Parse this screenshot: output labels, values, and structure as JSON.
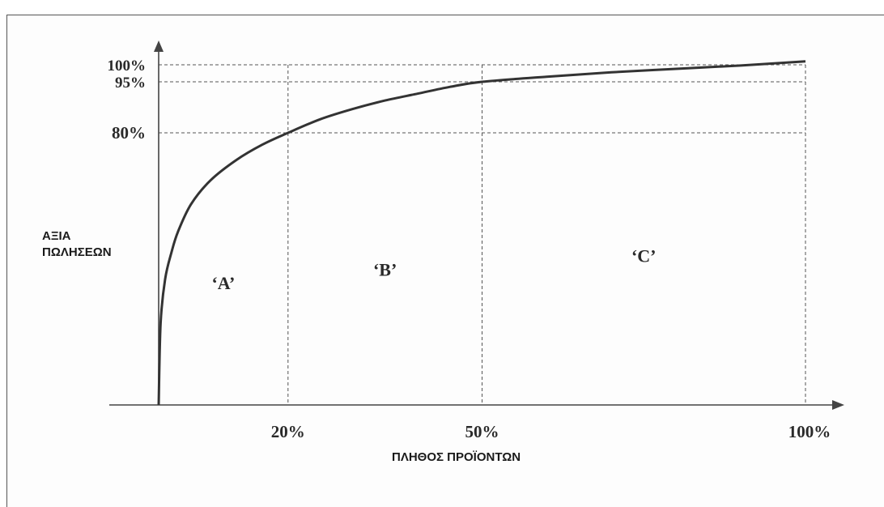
{
  "chart_data": {
    "type": "line",
    "xlabel": "ΠΛΗΘΟΣ ΠΡΟΪΟΝΤΩΝ",
    "ylabel": [
      "ΑΞΙΑ",
      "ΠΩΛΗΣΕΩΝ"
    ],
    "x_ticks": [
      {
        "value": 20,
        "label": "20%"
      },
      {
        "value": 50,
        "label": "50%"
      },
      {
        "value": 100,
        "label": "100%"
      }
    ],
    "y_ticks": [
      {
        "value": 80,
        "label": "80%"
      },
      {
        "value": 95,
        "label": "95%"
      },
      {
        "value": 100,
        "label": "100%"
      }
    ],
    "xlim": [
      0,
      100
    ],
    "ylim": [
      0,
      100
    ],
    "grid": "dashed lines at ticks",
    "series": [
      {
        "x": [
          0,
          0.3,
          1,
          2,
          3,
          5,
          8,
          12,
          16,
          20,
          25,
          30,
          35,
          40,
          45,
          50,
          60,
          70,
          80,
          90,
          100
        ],
        "y": [
          0,
          24,
          37,
          45,
          51,
          59,
          66,
          72,
          76.5,
          80,
          84,
          87,
          89.5,
          91.5,
          93.5,
          95,
          96.5,
          97.8,
          98.8,
          99.8,
          101
        ]
      }
    ],
    "region_labels": [
      {
        "label": "‘A’",
        "x": 10,
        "y": 34
      },
      {
        "label": "‘B’",
        "x": 35,
        "y": 38
      },
      {
        "label": "‘C’",
        "x": 75,
        "y": 42
      }
    ],
    "colors": {
      "curve": "#333333",
      "grid": "#555555",
      "axis": "#444444"
    }
  }
}
